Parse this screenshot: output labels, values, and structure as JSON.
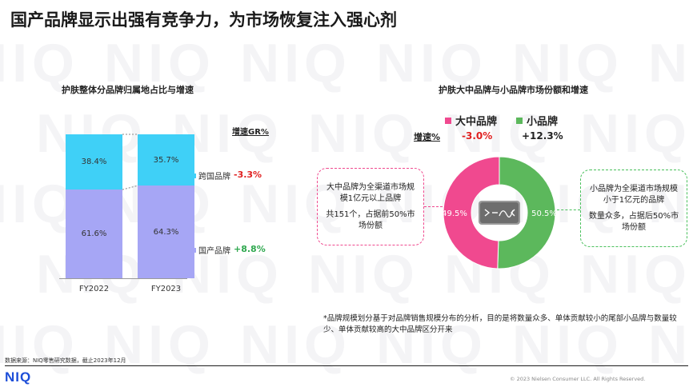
{
  "title": "国产品牌显示出强有竞争力，为市场恢复注入强心剂",
  "watermark_text": "NIQ",
  "left_panel": {
    "title": "护肤整体分品牌归属地占比与增速",
    "growth_header": "增速GR%",
    "legend": [
      {
        "label": "跨国品牌",
        "color": "#3fd0f7",
        "growth": "-3.3%",
        "growth_color": "#e02020"
      },
      {
        "label": "国产品牌",
        "color": "#a6a6f5",
        "growth": "+8.8%",
        "growth_color": "#2fa84f"
      }
    ]
  },
  "right_panel": {
    "title": "护肤大中品牌与小品牌市场份额和增速",
    "growth_label": "增速%",
    "legend": [
      {
        "label": "大中品牌",
        "color": "#f0498f",
        "growth": "-3.0%",
        "growth_color": "#e02020"
      },
      {
        "label": "小品牌",
        "color": "#5cb85c",
        "growth": "+12.3%",
        "growth_color": "#222222"
      }
    ],
    "callout_left": {
      "line1": "大中品牌为全渠道市场规模1亿元以上品牌",
      "line2": "共151个，占据前50%市场份额"
    },
    "callout_right": {
      "line1": "小品牌为全渠道市场规模小于1亿元的品牌",
      "line2": "数量众多，占据后50%市场份额"
    },
    "center_icon": "contract-scroll-icon"
  },
  "chart_data": [
    {
      "type": "bar",
      "stacked": true,
      "percent": true,
      "title": "护肤整体分品牌归属地占比与增速",
      "categories": [
        "FY2022",
        "FY2023"
      ],
      "series": [
        {
          "name": "国产品牌",
          "values": [
            61.6,
            64.3
          ],
          "labels": [
            "61.6%",
            "64.3%"
          ]
        },
        {
          "name": "跨国品牌",
          "values": [
            38.4,
            35.7
          ],
          "labels": [
            "38.4%",
            "35.7%"
          ]
        }
      ],
      "ylim": [
        0,
        100
      ],
      "grid": false,
      "legend": "right"
    },
    {
      "type": "pie",
      "donut": true,
      "title": "护肤大中品牌与小品牌市场份额和增速",
      "categories": [
        "小品牌",
        "大中品牌"
      ],
      "values": [
        50.5,
        49.5
      ],
      "labels": [
        "50.5%",
        "49.5%"
      ],
      "legend": "top"
    }
  ],
  "footnote": "*品牌规模划分基于对品牌销售规模分布的分析，目的是将数量众多、单体贡献较小的尾部小品牌与数量较少、单体贡献较高的大中品牌区分开来",
  "source": "数据来源：NIQ零售研究数据，截止2023年12月",
  "logo": "NIQ",
  "copyright": "© 2023 Nielsen Consumer LLC. All Rights Reserved."
}
